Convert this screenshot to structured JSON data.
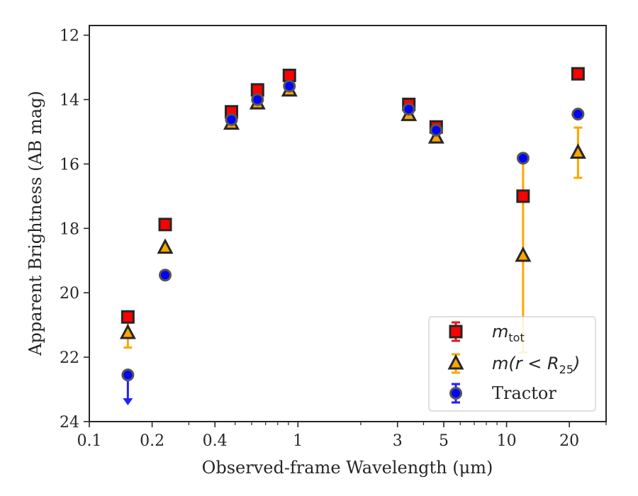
{
  "chart_data": {
    "type": "scatter",
    "xlabel": "Observed-frame Wavelength (μm)",
    "ylabel": "Apparent Brightness (AB mag)",
    "xscale": "log",
    "yinverted": true,
    "xlim": [
      0.1,
      30
    ],
    "ylim": [
      24,
      11.7
    ],
    "xticks": [
      {
        "value": 0.1,
        "label": "0.1"
      },
      {
        "value": 0.2,
        "label": "0.2"
      },
      {
        "value": 0.4,
        "label": "0.4"
      },
      {
        "value": 1,
        "label": "1"
      },
      {
        "value": 3,
        "label": "3"
      },
      {
        "value": 5,
        "label": "5"
      },
      {
        "value": 10,
        "label": "10"
      },
      {
        "value": 20,
        "label": "20"
      }
    ],
    "yticks": [
      {
        "value": 12,
        "label": "12"
      },
      {
        "value": 14,
        "label": "14"
      },
      {
        "value": 16,
        "label": "16"
      },
      {
        "value": 18,
        "label": "18"
      },
      {
        "value": 20,
        "label": "20"
      },
      {
        "value": 22,
        "label": "22"
      },
      {
        "value": 24,
        "label": "24"
      }
    ],
    "grid": false,
    "legend_position": "lower-right",
    "series": [
      {
        "name": "m_tot",
        "legend_main": "m",
        "legend_sub": "tot",
        "marker": "square",
        "color": "#ff0000",
        "edge_color": "#262626",
        "error_color": "#e41a1c",
        "points": [
          {
            "x": 0.153,
            "y": 20.75,
            "err": 0
          },
          {
            "x": 0.231,
            "y": 17.88,
            "err": 0
          },
          {
            "x": 0.48,
            "y": 14.38,
            "err": 0
          },
          {
            "x": 0.64,
            "y": 13.7,
            "err": 0
          },
          {
            "x": 0.91,
            "y": 13.25,
            "err": 0
          },
          {
            "x": 3.4,
            "y": 14.15,
            "err": 0
          },
          {
            "x": 4.6,
            "y": 14.85,
            "err": 0
          },
          {
            "x": 12.0,
            "y": 17.0,
            "err": 0
          },
          {
            "x": 22.0,
            "y": 13.2,
            "err": 0
          }
        ]
      },
      {
        "name": "m(r < R_25)",
        "legend_main": "m(r < R",
        "legend_sub": "25",
        "legend_close": ")",
        "marker": "triangle",
        "color": "#ffa500",
        "edge_color": "#262626",
        "error_color": "#ffa500",
        "points": [
          {
            "x": 0.153,
            "y": 21.25,
            "err": 0.45
          },
          {
            "x": 0.231,
            "y": 18.6,
            "err": 0
          },
          {
            "x": 0.48,
            "y": 14.75,
            "err": 0
          },
          {
            "x": 0.64,
            "y": 14.12,
            "err": 0
          },
          {
            "x": 0.91,
            "y": 13.72,
            "err": 0
          },
          {
            "x": 3.4,
            "y": 14.48,
            "err": 0
          },
          {
            "x": 4.6,
            "y": 15.18,
            "err": 0
          },
          {
            "x": 12.0,
            "y": 18.85,
            "err": 3.0
          },
          {
            "x": 22.0,
            "y": 15.65,
            "err": 0.78
          }
        ]
      },
      {
        "name": "Tractor",
        "legend_main": "Tractor",
        "marker": "circle",
        "color": "#0000ff",
        "edge_color": "#555555",
        "error_color": "#1f1fff",
        "points": [
          {
            "x": 0.153,
            "y": 22.55,
            "upper_limit": true
          },
          {
            "x": 0.231,
            "y": 19.45
          },
          {
            "x": 0.48,
            "y": 14.62
          },
          {
            "x": 0.64,
            "y": 14.0
          },
          {
            "x": 0.91,
            "y": 13.58
          },
          {
            "x": 3.4,
            "y": 14.3
          },
          {
            "x": 4.6,
            "y": 14.95
          },
          {
            "x": 12.0,
            "y": 15.82,
            "err": 0
          },
          {
            "x": 22.0,
            "y": 14.45
          }
        ]
      }
    ]
  }
}
